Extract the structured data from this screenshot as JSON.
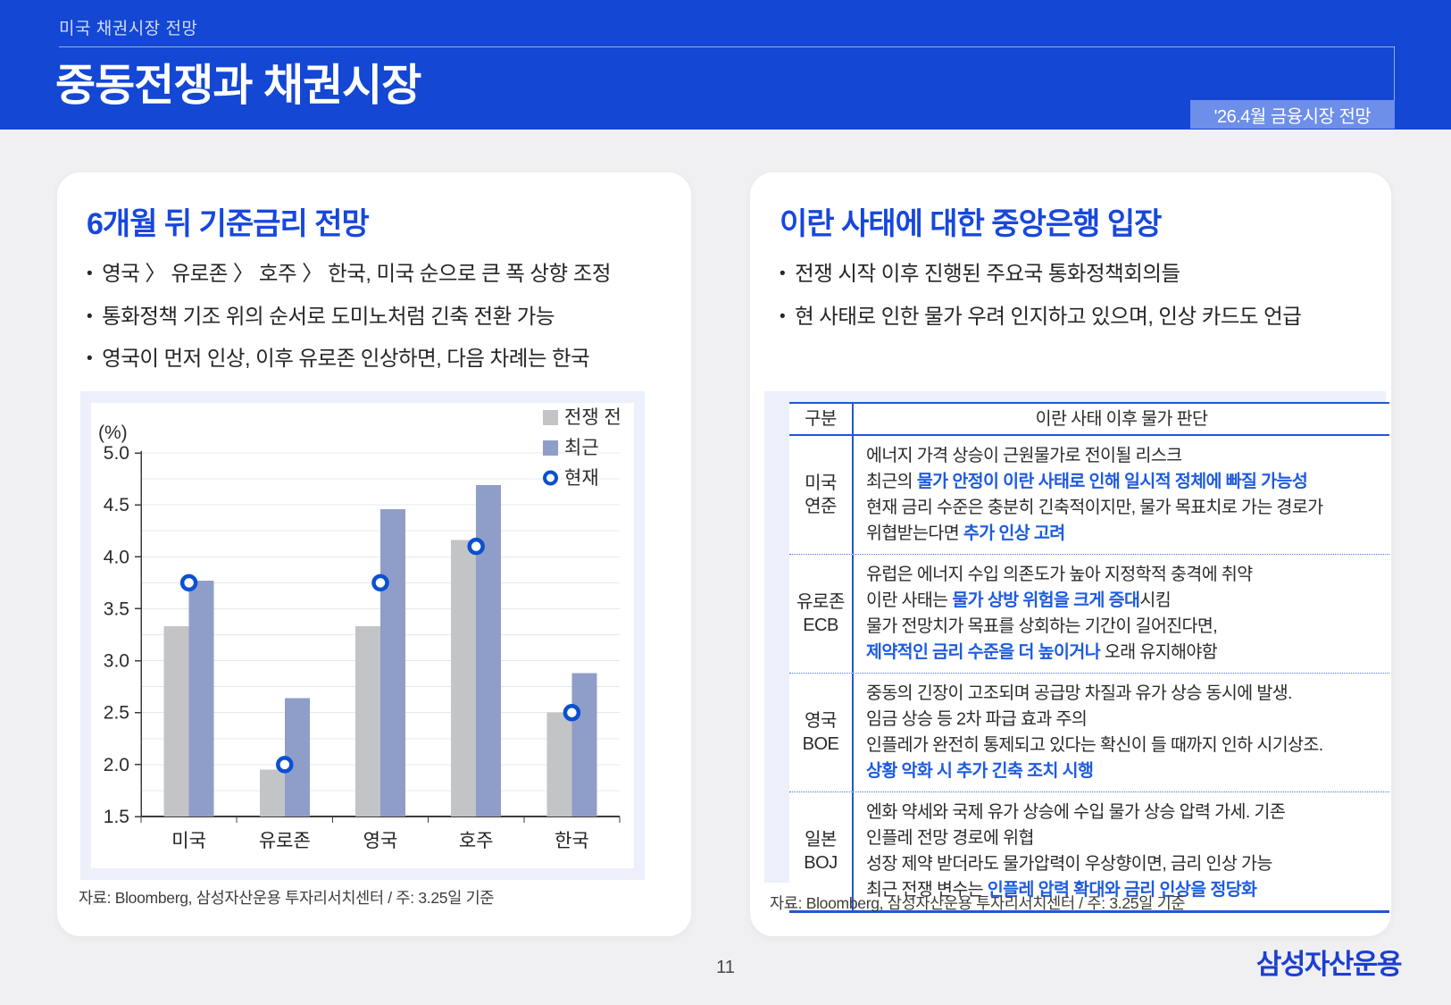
{
  "header": {
    "kicker": "미국 채권시장 전망",
    "title": "중동전쟁과 채권시장",
    "badge": "'26.4월 금융시장 전망"
  },
  "left_card": {
    "title": "6개월 뒤 기준금리 전망",
    "bullets": [
      "영국 〉 유로존 〉 호주 〉 한국, 미국 순으로 큰 폭 상향 조정",
      "통화정책 기조 위의 순서로 도미노처럼 긴축 전환 가능",
      "영국이 먼저 인상, 이후 유로존 인상하면, 다음 차례는 한국"
    ],
    "source": "자료: Bloomberg, 삼성자산운용 투자리서치센터 / 주: 3.25일 기준"
  },
  "chart_data": {
    "type": "bar",
    "unit_label": "(%)",
    "categories": [
      "미국",
      "유로존",
      "영국",
      "호주",
      "한국"
    ],
    "series": [
      {
        "name": "전쟁 전",
        "color": "#c3c4c6",
        "values": [
          3.33,
          1.95,
          3.33,
          4.16,
          2.5
        ]
      },
      {
        "name": "최근",
        "color": "#8f9dc9",
        "values": [
          3.77,
          2.64,
          4.46,
          4.69,
          2.88
        ]
      }
    ],
    "marker_series": {
      "name": "현재",
      "color": "#0b50d0",
      "values": [
        3.75,
        2.0,
        3.75,
        4.1,
        2.5
      ]
    },
    "ylim": [
      1.5,
      5.0
    ],
    "ytick_step": 0.5,
    "grid_step": 0.25,
    "grid": true,
    "legend_position": "top-right"
  },
  "right_card": {
    "title": "이란 사태에 대한 중앙은행 입장",
    "bullets": [
      "전쟁 시작 이후 진행된 주요국 통화정책회의들",
      "현 사태로 인한 물가 우려 인지하고 있으며, 인상 카드도 언급"
    ],
    "table": {
      "col_headers": [
        "구분",
        "이란 사태 이후 물가 판단"
      ],
      "rows": [
        {
          "label_lines": [
            "미국",
            "연준"
          ],
          "lines": [
            [
              {
                "t": "에너지 가격 상승이 근원물가로 전이될 리스크"
              }
            ],
            [
              {
                "t": "최근의 "
              },
              {
                "t": "물가 안정이 이란 사태로 인해 일시적 정체에 빠질 가능성",
                "hl": true
              }
            ],
            [
              {
                "t": "현재 금리 수준은 충분히 긴축적이지만, 물가 목표치로 가는 경로가"
              }
            ],
            [
              {
                "t": "위협받는다면 "
              },
              {
                "t": "추가 인상 고려",
                "hl": true
              }
            ]
          ]
        },
        {
          "label_lines": [
            "유로존",
            "ECB"
          ],
          "lines": [
            [
              {
                "t": "유럽은 에너지 수입 의존도가 높아 지정학적 충격에 취약"
              }
            ],
            [
              {
                "t": "이란 사태는 "
              },
              {
                "t": "물가 상방 위험을 크게 증대",
                "hl": true
              },
              {
                "t": "시킴"
              }
            ],
            [
              {
                "t": "물가 전망치가 목표를 상회하는 기간이 길어진다면,"
              }
            ],
            [
              {
                "t": "제약적인 금리 수준을 더 높이거나",
                "hl": true
              },
              {
                "t": " 오래 유지해야함"
              }
            ]
          ]
        },
        {
          "label_lines": [
            "영국",
            "BOE"
          ],
          "lines": [
            [
              {
                "t": "중동의 긴장이 고조되며 공급망 차질과 유가 상승 동시에 발생."
              }
            ],
            [
              {
                "t": "임금 상승 등 2차 파급 효과 주의"
              }
            ],
            [
              {
                "t": "인플레가 완전히 통제되고 있다는 확신이 들 때까지 인하 시기상조."
              }
            ],
            [
              {
                "t": "상황 악화 시 추가 긴축 조치 시행",
                "hl": true
              }
            ]
          ]
        },
        {
          "label_lines": [
            "일본",
            "BOJ"
          ],
          "lines": [
            [
              {
                "t": "엔화 약세와 국제 유가 상승에 수입 물가 상승 압력 가세. 기존"
              }
            ],
            [
              {
                "t": "인플레 전망 경로에 위협"
              }
            ],
            [
              {
                "t": "성장 제약 받더라도 물가압력이 우상향이면, 금리 인상 가능"
              }
            ],
            [
              {
                "t": "최근 전쟁 변수는 "
              },
              {
                "t": "인플레 압력 확대와 금리 인상을 정당화",
                "hl": true
              }
            ]
          ]
        }
      ]
    },
    "source": "자료: Bloomberg,  삼성자산운용 투자리서치센터 / 주: 3.25일 기준"
  },
  "footer": {
    "page_number": "11",
    "logo": "삼성자산운용"
  },
  "colors": {
    "header_blue": "#1347d4",
    "badge_blue": "#6d8ee9",
    "title_blue": "#1747dd",
    "highlight_blue": "#1e5be0",
    "table_border_blue": "#2257d2",
    "panel_bg": "#edf0fb",
    "bar_gray": "#c3c4c6",
    "bar_periwinkle": "#8f9dc9",
    "marker_blue": "#0b50d0",
    "logo_blue": "#1c3fd0"
  }
}
